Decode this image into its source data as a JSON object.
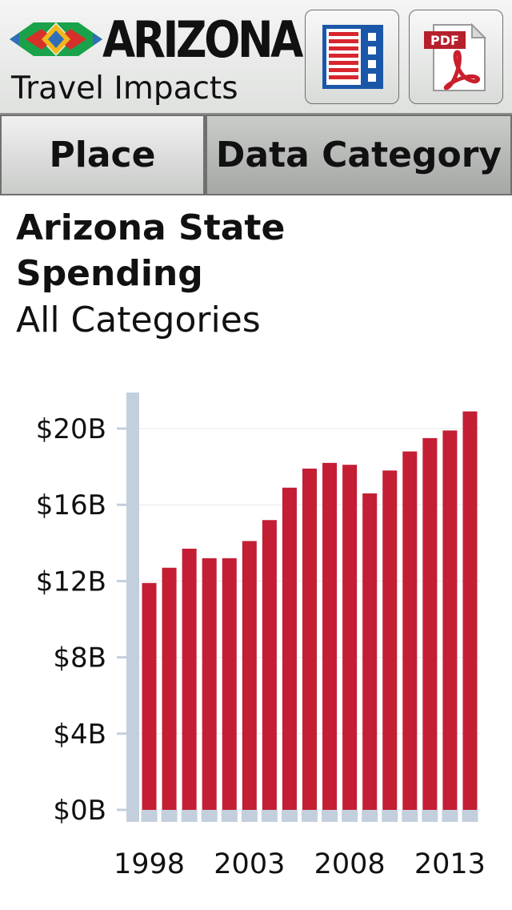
{
  "header": {
    "logo_word": "ARIZONA",
    "logo_subtitle": "Travel Impacts",
    "table_button_icon": "table-list-icon",
    "pdf_button_label": "PDF",
    "pdf_button_icon": "pdf-document-icon"
  },
  "tabs": [
    {
      "label": "Place",
      "active": false
    },
    {
      "label": "Data Category",
      "active": true
    }
  ],
  "title": {
    "main": "Arizona State Spending",
    "sub": "All Categories"
  },
  "colors": {
    "bar": "#c41e34",
    "axis": "#c3cfdc",
    "gridline": "#e8e8e8"
  },
  "chart_data": {
    "type": "bar",
    "title": "",
    "xlabel": "",
    "ylabel": "",
    "categories": [
      "1998",
      "1999",
      "2000",
      "2001",
      "2002",
      "2003",
      "2004",
      "2005",
      "2006",
      "2007",
      "2008",
      "2009",
      "2010",
      "2011",
      "2012",
      "2013",
      "2014"
    ],
    "values": [
      11.9,
      12.7,
      13.7,
      13.2,
      13.2,
      14.1,
      15.2,
      16.9,
      17.9,
      18.2,
      18.1,
      16.6,
      17.8,
      18.8,
      19.5,
      19.9,
      20.9
    ],
    "ylim": [
      0,
      22
    ],
    "yticks": [
      {
        "value": 0,
        "label": "$0B"
      },
      {
        "value": 4,
        "label": "$4B"
      },
      {
        "value": 8,
        "label": "$8B"
      },
      {
        "value": 12,
        "label": "$12B"
      },
      {
        "value": 16,
        "label": "$16B"
      },
      {
        "value": 20,
        "label": "$20B"
      }
    ],
    "xtick_labels": [
      {
        "index": 0,
        "label": "1998"
      },
      {
        "index": 5,
        "label": "2003"
      },
      {
        "index": 10,
        "label": "2008"
      },
      {
        "index": 15,
        "label": "2013"
      }
    ],
    "grid": true,
    "legend": "none"
  }
}
